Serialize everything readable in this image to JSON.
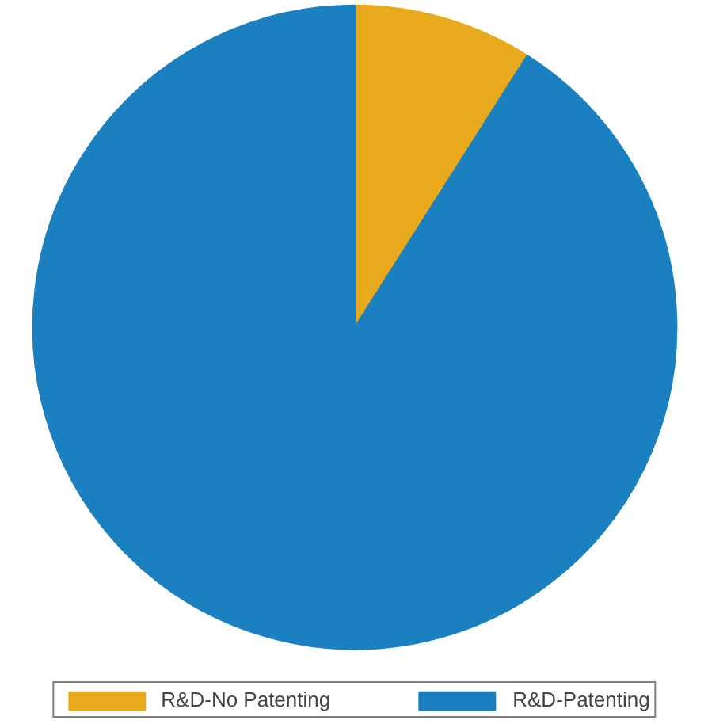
{
  "chart_data": {
    "type": "pie",
    "categories": [
      "R&D-No Patenting",
      "R&D-Patenting"
    ],
    "values": [
      9,
      91
    ],
    "colors": [
      "#e8a91c",
      "#1b80bf"
    ],
    "legend": "bottom"
  }
}
